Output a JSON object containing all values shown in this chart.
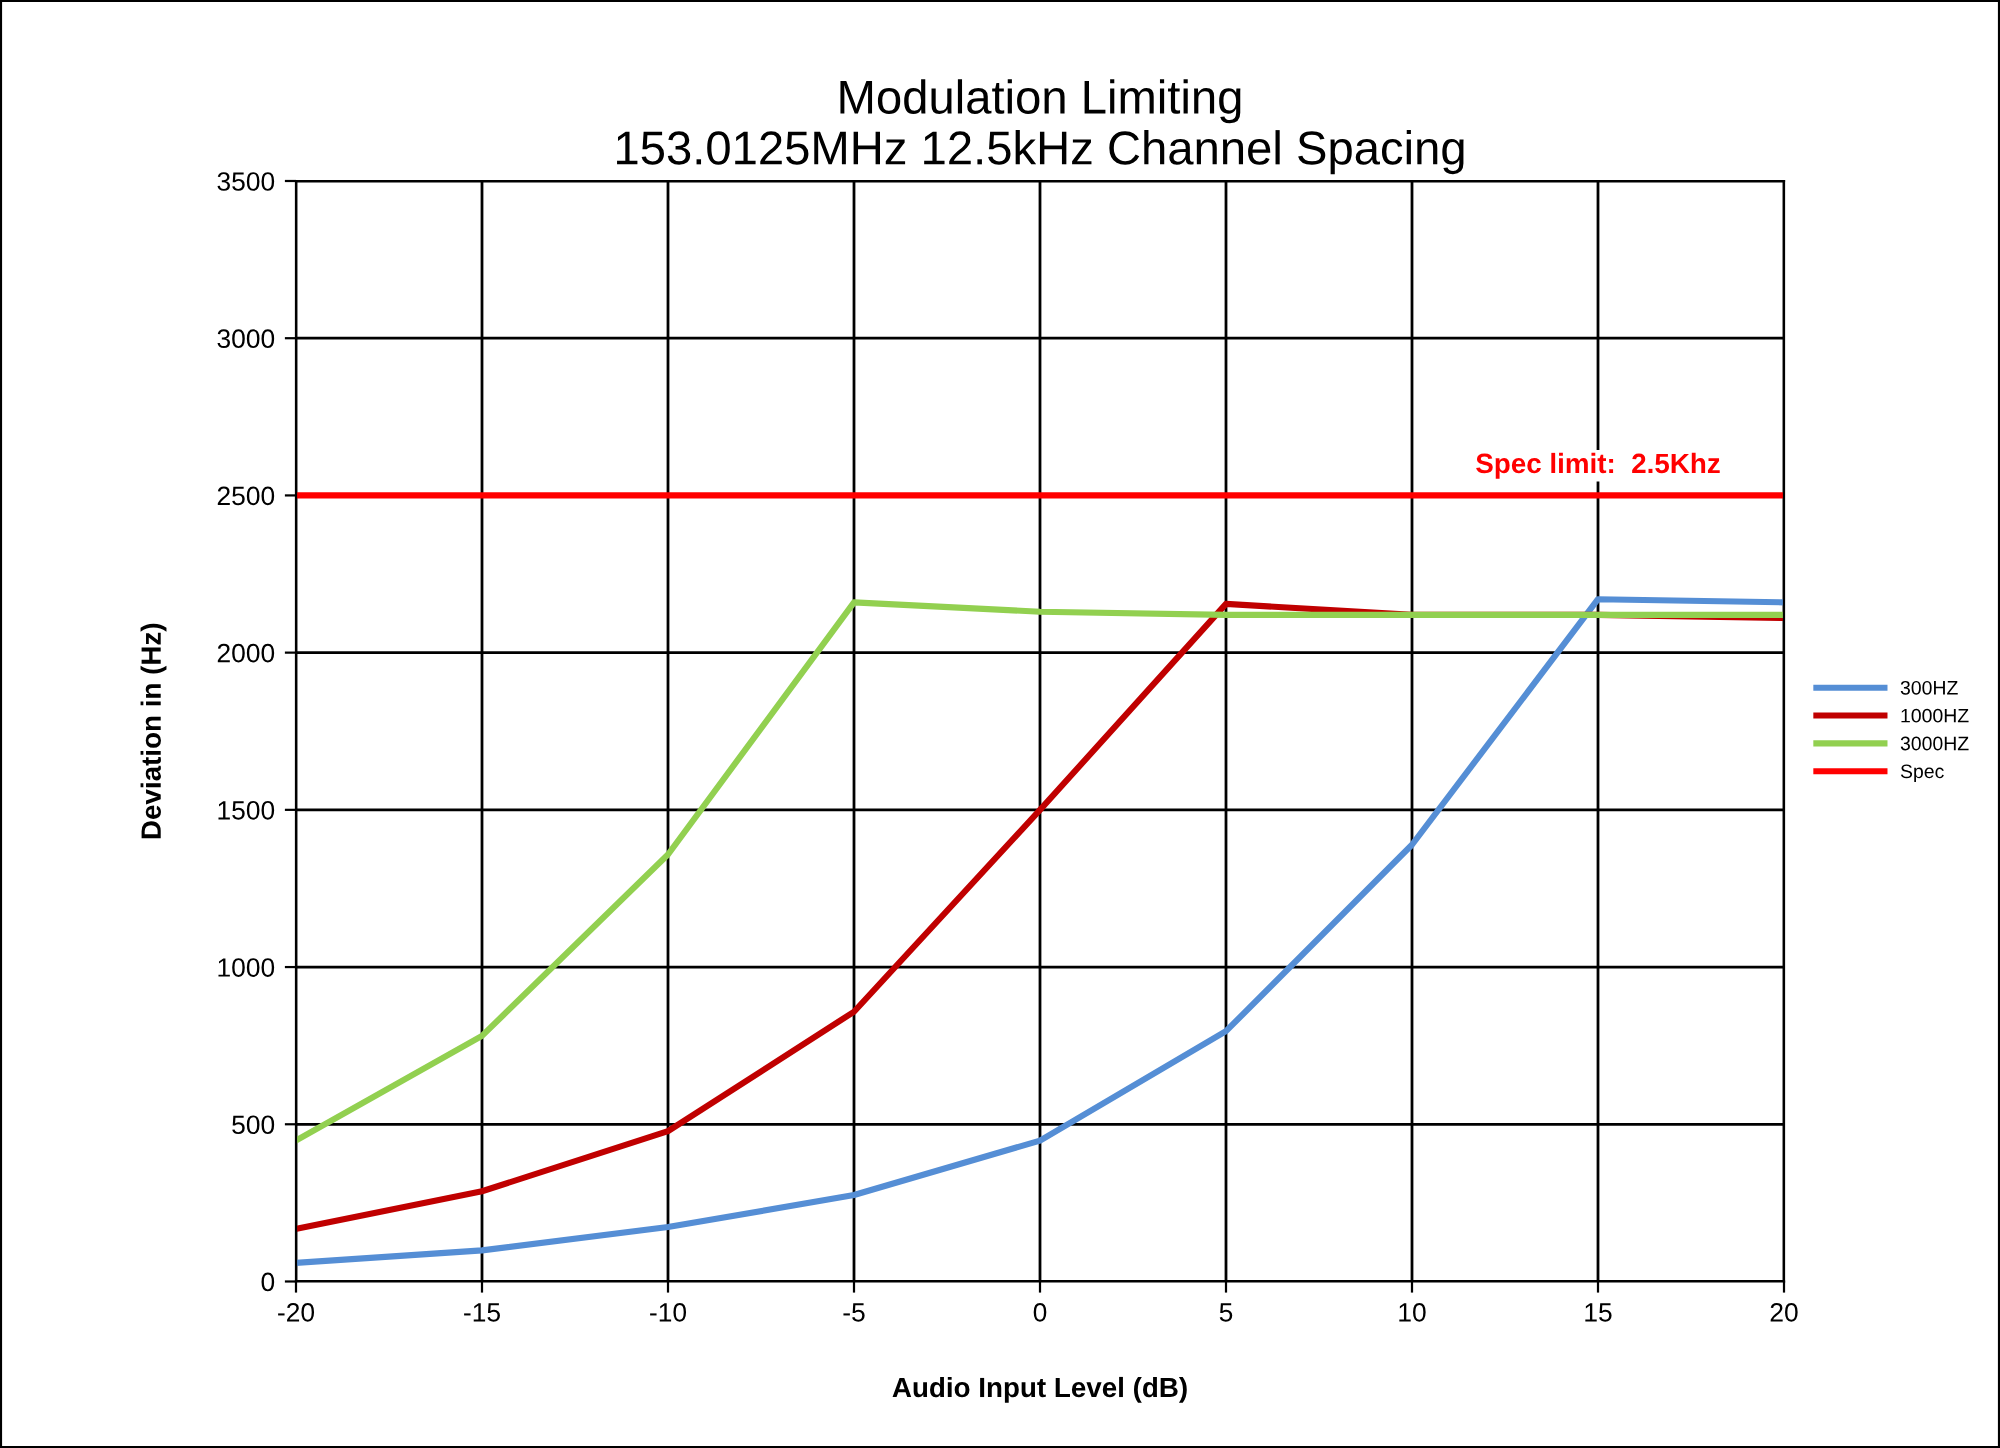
{
  "chart_data": {
    "type": "line",
    "title": "Modulation Limiting\n153.0125MHz 12.5kHz Channel Spacing",
    "xlabel": "Audio Input Level (dB)",
    "ylabel": "Deviation in (Hz)",
    "x": [
      -20,
      -15,
      -10,
      -5,
      0,
      5,
      10,
      15,
      20
    ],
    "series": [
      {
        "name": "300HZ",
        "color": "#558ed5",
        "values": [
          59,
          99,
          173,
          275,
          448,
          796,
          1389,
          2170,
          2160
        ]
      },
      {
        "name": "1000HZ",
        "color": "#c00000",
        "values": [
          167,
          287,
          478,
          858,
          1500,
          2155,
          2120,
          2120,
          2110
        ]
      },
      {
        "name": "3000HZ",
        "color": "#92d050",
        "values": [
          448,
          781,
          1358,
          2160,
          2130,
          2120,
          2120,
          2120,
          2120
        ]
      },
      {
        "name": "Spec",
        "color": "#ff0000",
        "values": [
          2500,
          2500,
          2500,
          2500,
          2500,
          2500,
          2500,
          2500,
          2500
        ]
      }
    ],
    "annotations": [
      {
        "text": "Spec limit:  2.5Khz",
        "x": 15,
        "y": 2500
      }
    ],
    "xlim": [
      -20,
      20
    ],
    "xticks": [
      -20,
      -15,
      -10,
      -5,
      0,
      5,
      10,
      15,
      20
    ],
    "ylim": [
      0,
      3500
    ],
    "yticks": [
      0,
      500,
      1000,
      1500,
      2000,
      2500,
      3000,
      3500
    ],
    "grid": true,
    "legend": "right",
    "marker": "none",
    "line_style": "solid"
  }
}
